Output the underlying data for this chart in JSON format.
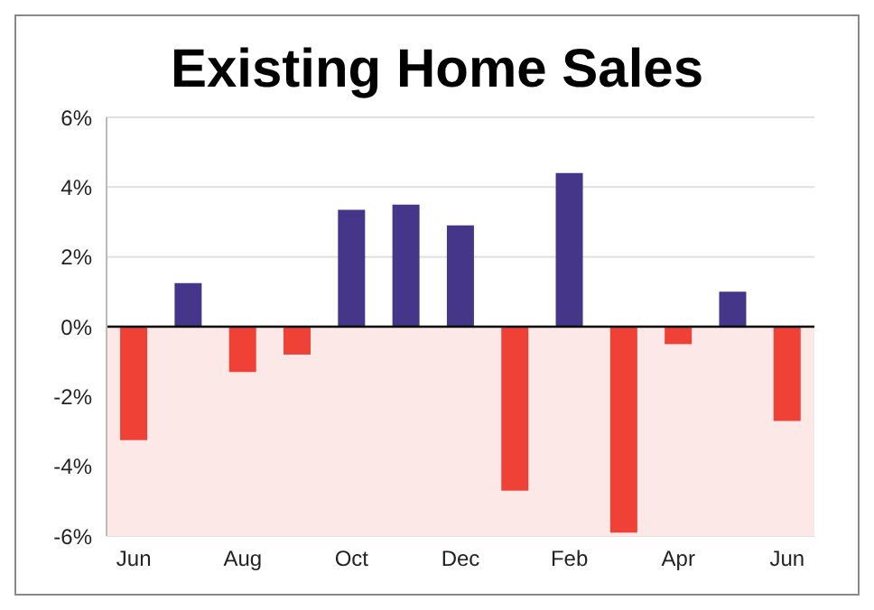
{
  "chart_data": {
    "type": "bar",
    "title": "Existing Home Sales",
    "categories": [
      "Jun",
      null,
      "Aug",
      null,
      "Oct",
      null,
      "Dec",
      null,
      "Feb",
      null,
      "Apr",
      null,
      "Jun"
    ],
    "values": [
      -3.25,
      1.25,
      -1.3,
      -0.8,
      3.35,
      3.5,
      2.9,
      -4.7,
      4.4,
      -5.9,
      -0.5,
      1.0,
      -2.7
    ],
    "colors": [
      "#ef4136",
      "#45368a",
      "#ef4136",
      "#ef4136",
      "#45368a",
      "#45368a",
      "#45368a",
      "#ef4136",
      "#45368a",
      "#ef4136",
      "#ef4136",
      "#45368a",
      "#ef4136"
    ],
    "ylim": [
      -6,
      6
    ],
    "yticks": [
      {
        "value": -6,
        "label": "-6%"
      },
      {
        "value": -4,
        "label": "-4%"
      },
      {
        "value": -2,
        "label": "-2%"
      },
      {
        "value": 0,
        "label": "0%"
      },
      {
        "value": 2,
        "label": "2%"
      },
      {
        "value": 4,
        "label": "4%"
      },
      {
        "value": 6,
        "label": "6%"
      }
    ],
    "grid": "y",
    "bands": [
      {
        "axis": "y",
        "from": -6,
        "to": 0,
        "color": "#fde8e8"
      }
    ],
    "ref_lines": [
      {
        "axis": "y",
        "value": 0,
        "color": "#000000"
      }
    ]
  }
}
